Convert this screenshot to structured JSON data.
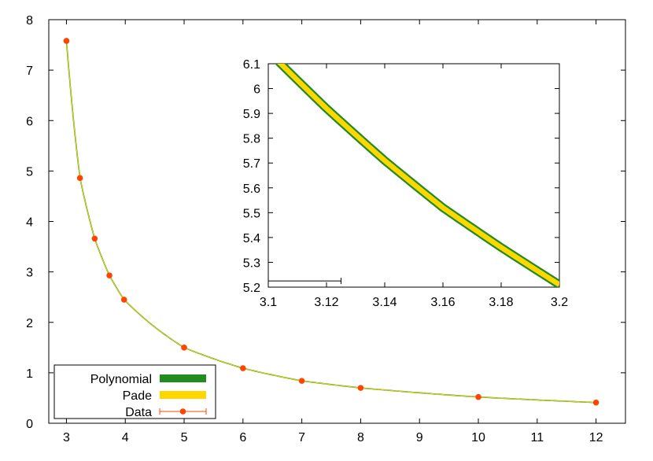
{
  "chart_data": [
    {
      "type": "line",
      "title": "",
      "xlabel": "",
      "ylabel": "",
      "xlim": [
        2.7,
        12.5
      ],
      "ylim": [
        0,
        8
      ],
      "x_ticks": [
        "3",
        "4",
        "5",
        "6",
        "7",
        "8",
        "9",
        "10",
        "11",
        "12"
      ],
      "y_ticks": [
        "0",
        "1",
        "2",
        "3",
        "4",
        "5",
        "6",
        "7",
        "8"
      ],
      "grid": false,
      "legend_position": "bottom-left",
      "series": [
        {
          "name": "Polynomial",
          "color": "#228b22",
          "style": "band"
        },
        {
          "name": "Pade",
          "color": "#ffd700",
          "style": "band"
        },
        {
          "name": "Data",
          "color": "#ff4500",
          "style": "points-with-errorbars",
          "x": [
            3.0,
            3.23,
            3.48,
            3.73,
            3.98,
            5.0,
            6.0,
            7.0,
            8.0,
            10.0,
            12.0
          ],
          "y": [
            7.58,
            4.86,
            3.66,
            2.93,
            2.45,
            1.5,
            1.09,
            0.84,
            0.7,
            0.52,
            0.41
          ]
        }
      ]
    },
    {
      "type": "line",
      "title": "",
      "xlabel": "",
      "ylabel": "",
      "xlim": [
        3.1,
        3.2
      ],
      "ylim": [
        5.2,
        6.1
      ],
      "x_ticks": [
        "3.1",
        "3.12",
        "3.14",
        "3.16",
        "3.18",
        "3.2"
      ],
      "y_ticks": [
        "5.2",
        "5.3",
        "5.4",
        "5.5",
        "5.6",
        "5.7",
        "5.8",
        "5.9",
        "6",
        "6.1"
      ],
      "grid": false,
      "series": [
        {
          "name": "Polynomial",
          "color": "#228b22",
          "x": [
            3.1,
            3.12,
            3.14,
            3.16,
            3.18,
            3.2
          ],
          "y": [
            6.15,
            5.92,
            5.71,
            5.52,
            5.36,
            5.21
          ]
        },
        {
          "name": "Pade",
          "color": "#ffd700",
          "x": [
            3.1,
            3.12,
            3.14,
            3.16,
            3.18,
            3.2
          ],
          "y": [
            6.15,
            5.92,
            5.71,
            5.52,
            5.36,
            5.21
          ]
        },
        {
          "name": "Data",
          "color": "#000000",
          "style": "errorbar",
          "x": [
            3.1,
            3.125
          ],
          "y": [
            5.225,
            5.225
          ]
        }
      ]
    }
  ]
}
